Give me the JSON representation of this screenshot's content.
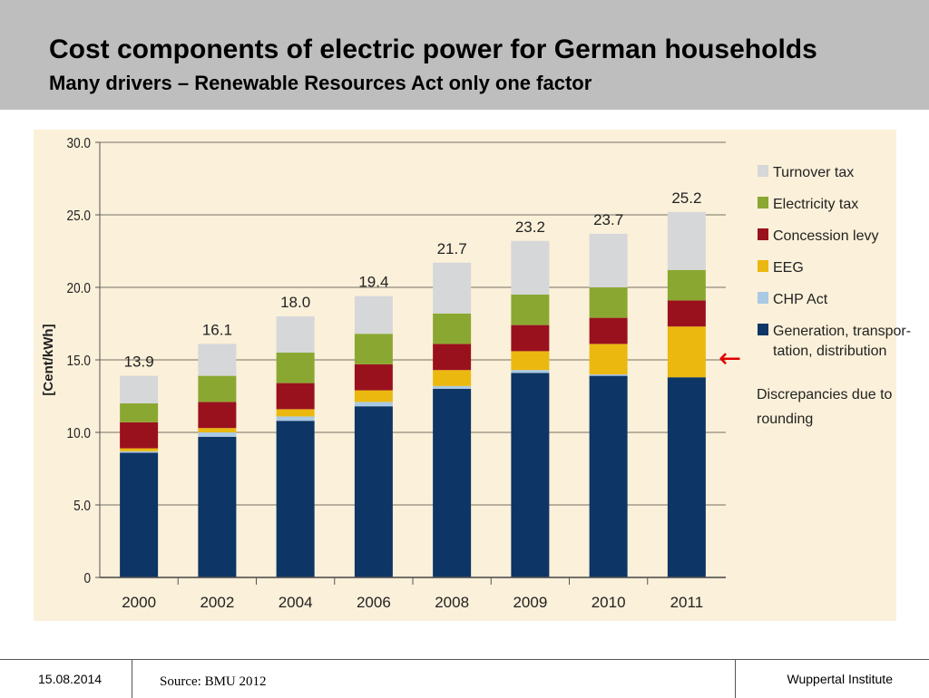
{
  "header": {
    "title": "Cost components of electric power for German households",
    "subtitle": "Many drivers – Renewable Resources Act only one factor"
  },
  "chart_data": {
    "type": "bar",
    "stacked": true,
    "ylabel": "[Cent/kWh]",
    "ylim": [
      0,
      30
    ],
    "yticks": [
      0,
      5,
      10,
      15,
      20,
      25,
      30
    ],
    "ytick_labels": [
      "0",
      "5.0",
      "10.0",
      "15.0",
      "20.0",
      "25.0",
      "30.0"
    ],
    "grid": true,
    "legend_position": "right",
    "categories": [
      "2000",
      "2002",
      "2004",
      "2006",
      "2008",
      "2009",
      "2010",
      "2011"
    ],
    "totals": [
      "13.9",
      "16.1",
      "18.0",
      "19.4",
      "21.7",
      "23.2",
      "23.7",
      "25.2"
    ],
    "series": [
      {
        "name": "Generation, transpor-\ntation, distribution",
        "color": "#0d3565",
        "values": [
          8.6,
          9.7,
          10.8,
          11.8,
          13.0,
          14.1,
          13.9,
          13.8
        ]
      },
      {
        "name": "CHP Act",
        "color": "#a9c9e4",
        "values": [
          0.1,
          0.3,
          0.3,
          0.3,
          0.2,
          0.2,
          0.1,
          0.0
        ]
      },
      {
        "name": "EEG",
        "color": "#ebb810",
        "values": [
          0.2,
          0.3,
          0.5,
          0.8,
          1.1,
          1.3,
          2.1,
          3.5
        ]
      },
      {
        "name": "Concession levy",
        "color": "#9a111e",
        "values": [
          1.8,
          1.8,
          1.8,
          1.8,
          1.8,
          1.8,
          1.8,
          1.8
        ]
      },
      {
        "name": "Electricity tax",
        "color": "#8aa831",
        "values": [
          1.3,
          1.8,
          2.1,
          2.1,
          2.1,
          2.1,
          2.1,
          2.1
        ]
      },
      {
        "name": "Turnover tax",
        "color": "#d6d7d9",
        "values": [
          1.9,
          2.2,
          2.5,
          2.6,
          3.5,
          3.7,
          3.7,
          4.0
        ]
      }
    ],
    "note": "Discrepancies due to\nrounding",
    "annotation_arrow": {
      "glyph": "←",
      "color": "#e00000",
      "points_to": "EEG"
    }
  },
  "footer": {
    "date": "15.08.2014",
    "source": "Source: BMU 2012",
    "institute": "Wuppertal Institute"
  }
}
